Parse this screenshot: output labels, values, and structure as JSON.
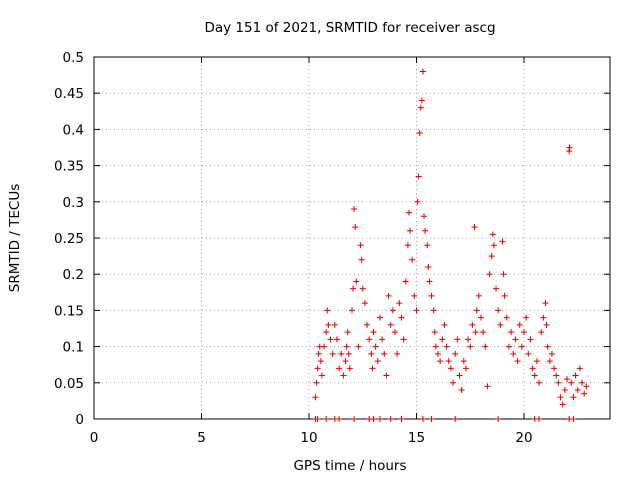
{
  "chart_data": {
    "type": "scatter",
    "title": "Day 151 of 2021, SRMTID for receiver ascg",
    "xlabel": "GPS time / hours",
    "ylabel": "SRMTID / TECUs",
    "xlim": [
      0,
      24
    ],
    "ylim": [
      0,
      0.5
    ],
    "x_ticks": [
      0,
      5,
      10,
      15,
      20
    ],
    "x_tick_labels": [
      "0",
      "5",
      "10",
      "15",
      "20"
    ],
    "y_ticks": [
      0,
      0.05,
      0.1,
      0.15,
      0.2,
      0.25,
      0.3,
      0.35,
      0.4,
      0.45,
      0.5
    ],
    "y_tick_labels": [
      "0",
      "0.05",
      "0.1",
      "0.15",
      "0.2",
      "0.25",
      "0.3",
      "0.35",
      "0.4",
      "0.45",
      "0.5"
    ],
    "grid": true,
    "marker": "+",
    "color": "#e00000",
    "series": [
      {
        "name": "SRMTID",
        "points": [
          [
            10.3,
            0.0
          ],
          [
            10.4,
            0.0
          ],
          [
            10.8,
            0.0
          ],
          [
            11.2,
            0.0
          ],
          [
            11.4,
            0.0
          ],
          [
            12.1,
            0.0
          ],
          [
            12.8,
            0.0
          ],
          [
            13.0,
            0.0
          ],
          [
            13.3,
            0.0
          ],
          [
            13.8,
            0.0
          ],
          [
            14.3,
            0.0
          ],
          [
            15.3,
            0.0
          ],
          [
            15.7,
            0.0
          ],
          [
            16.8,
            0.0
          ],
          [
            18.8,
            0.0
          ],
          [
            20.5,
            0.0
          ],
          [
            20.7,
            0.0
          ],
          [
            22.1,
            0.0
          ],
          [
            22.3,
            0.0
          ],
          [
            10.3,
            0.03
          ],
          [
            10.35,
            0.05
          ],
          [
            10.4,
            0.07
          ],
          [
            10.45,
            0.09
          ],
          [
            10.5,
            0.1
          ],
          [
            10.55,
            0.08
          ],
          [
            10.6,
            0.06
          ],
          [
            10.7,
            0.1
          ],
          [
            10.8,
            0.12
          ],
          [
            10.85,
            0.15
          ],
          [
            10.9,
            0.13
          ],
          [
            11.0,
            0.11
          ],
          [
            11.1,
            0.09
          ],
          [
            11.2,
            0.13
          ],
          [
            11.3,
            0.11
          ],
          [
            11.4,
            0.07
          ],
          [
            11.5,
            0.09
          ],
          [
            11.6,
            0.06
          ],
          [
            11.7,
            0.08
          ],
          [
            11.75,
            0.1
          ],
          [
            11.8,
            0.12
          ],
          [
            11.85,
            0.09
          ],
          [
            11.9,
            0.07
          ],
          [
            12.0,
            0.15
          ],
          [
            12.05,
            0.18
          ],
          [
            12.1,
            0.29
          ],
          [
            12.15,
            0.265
          ],
          [
            12.2,
            0.19
          ],
          [
            12.3,
            0.1
          ],
          [
            12.4,
            0.24
          ],
          [
            12.45,
            0.22
          ],
          [
            12.5,
            0.18
          ],
          [
            12.6,
            0.16
          ],
          [
            12.7,
            0.13
          ],
          [
            12.8,
            0.11
          ],
          [
            12.9,
            0.09
          ],
          [
            12.95,
            0.07
          ],
          [
            13.0,
            0.12
          ],
          [
            13.1,
            0.1
          ],
          [
            13.2,
            0.08
          ],
          [
            13.3,
            0.14
          ],
          [
            13.4,
            0.11
          ],
          [
            13.5,
            0.09
          ],
          [
            13.6,
            0.06
          ],
          [
            13.7,
            0.17
          ],
          [
            13.8,
            0.13
          ],
          [
            13.9,
            0.15
          ],
          [
            14.0,
            0.12
          ],
          [
            14.1,
            0.09
          ],
          [
            14.2,
            0.16
          ],
          [
            14.3,
            0.14
          ],
          [
            14.4,
            0.11
          ],
          [
            14.5,
            0.19
          ],
          [
            14.6,
            0.24
          ],
          [
            14.65,
            0.285
          ],
          [
            14.7,
            0.26
          ],
          [
            14.8,
            0.22
          ],
          [
            14.9,
            0.17
          ],
          [
            15.0,
            0.15
          ],
          [
            15.05,
            0.3
          ],
          [
            15.1,
            0.335
          ],
          [
            15.15,
            0.395
          ],
          [
            15.2,
            0.43
          ],
          [
            15.25,
            0.44
          ],
          [
            15.3,
            0.48
          ],
          [
            15.35,
            0.28
          ],
          [
            15.4,
            0.26
          ],
          [
            15.5,
            0.24
          ],
          [
            15.55,
            0.21
          ],
          [
            15.6,
            0.19
          ],
          [
            15.7,
            0.17
          ],
          [
            15.8,
            0.15
          ],
          [
            15.85,
            0.12
          ],
          [
            15.9,
            0.1
          ],
          [
            16.0,
            0.09
          ],
          [
            16.1,
            0.08
          ],
          [
            16.2,
            0.11
          ],
          [
            16.3,
            0.13
          ],
          [
            16.4,
            0.1
          ],
          [
            16.5,
            0.08
          ],
          [
            16.6,
            0.07
          ],
          [
            16.7,
            0.05
          ],
          [
            16.8,
            0.09
          ],
          [
            16.9,
            0.11
          ],
          [
            17.0,
            0.06
          ],
          [
            17.1,
            0.04
          ],
          [
            17.2,
            0.08
          ],
          [
            17.3,
            0.07
          ],
          [
            17.4,
            0.11
          ],
          [
            17.5,
            0.1
          ],
          [
            17.6,
            0.13
          ],
          [
            17.7,
            0.265
          ],
          [
            17.75,
            0.12
          ],
          [
            17.8,
            0.15
          ],
          [
            17.9,
            0.17
          ],
          [
            18.0,
            0.14
          ],
          [
            18.1,
            0.12
          ],
          [
            18.2,
            0.1
          ],
          [
            18.3,
            0.045
          ],
          [
            18.4,
            0.2
          ],
          [
            18.5,
            0.225
          ],
          [
            18.55,
            0.255
          ],
          [
            18.6,
            0.24
          ],
          [
            18.7,
            0.18
          ],
          [
            18.8,
            0.15
          ],
          [
            18.9,
            0.13
          ],
          [
            19.0,
            0.245
          ],
          [
            19.05,
            0.2
          ],
          [
            19.1,
            0.17
          ],
          [
            19.2,
            0.14
          ],
          [
            19.3,
            0.1
          ],
          [
            19.4,
            0.12
          ],
          [
            19.5,
            0.09
          ],
          [
            19.6,
            0.11
          ],
          [
            19.7,
            0.08
          ],
          [
            19.8,
            0.13
          ],
          [
            19.9,
            0.1
          ],
          [
            20.0,
            0.12
          ],
          [
            20.1,
            0.14
          ],
          [
            20.2,
            0.09
          ],
          [
            20.3,
            0.11
          ],
          [
            20.4,
            0.07
          ],
          [
            20.5,
            0.06
          ],
          [
            20.6,
            0.08
          ],
          [
            20.7,
            0.05
          ],
          [
            20.8,
            0.12
          ],
          [
            20.9,
            0.14
          ],
          [
            21.0,
            0.16
          ],
          [
            21.05,
            0.13
          ],
          [
            21.1,
            0.1
          ],
          [
            21.2,
            0.08
          ],
          [
            21.3,
            0.09
          ],
          [
            21.4,
            0.07
          ],
          [
            21.5,
            0.06
          ],
          [
            21.6,
            0.05
          ],
          [
            21.7,
            0.03
          ],
          [
            21.8,
            0.02
          ],
          [
            21.9,
            0.04
          ],
          [
            22.0,
            0.055
          ],
          [
            22.1,
            0.37
          ],
          [
            22.12,
            0.375
          ],
          [
            22.2,
            0.05
          ],
          [
            22.3,
            0.03
          ],
          [
            22.4,
            0.06
          ],
          [
            22.5,
            0.04
          ],
          [
            22.6,
            0.07
          ],
          [
            22.7,
            0.05
          ],
          [
            22.8,
            0.035
          ],
          [
            22.9,
            0.045
          ]
        ]
      }
    ]
  }
}
